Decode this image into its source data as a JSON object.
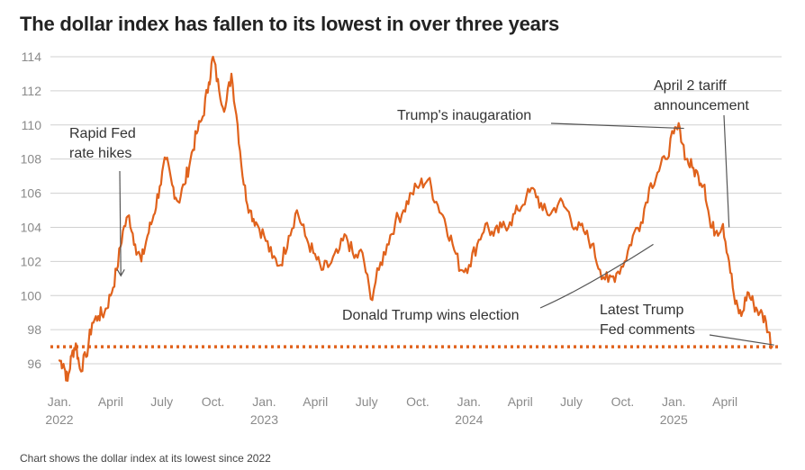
{
  "title": "The dollar index has fallen to its lowest in over three years",
  "footer": "Chart shows the dollar index at its lowest since 2022",
  "colors": {
    "line": "#e0621c",
    "grid": "#d0d0d0",
    "annotation": "#555555",
    "text": "#333333"
  },
  "chart_data": {
    "type": "line",
    "title": "The dollar index has fallen to its lowest in over three years",
    "xlabel": "",
    "ylabel": "",
    "xlim": [
      2022.0,
      2025.5
    ],
    "ylim": [
      95,
      114
    ],
    "yticks": [
      96,
      98,
      100,
      102,
      104,
      106,
      108,
      110,
      112,
      114
    ],
    "xticks": [
      {
        "x": 2022.0,
        "line1": "Jan.",
        "line2": "2022"
      },
      {
        "x": 2022.25,
        "line1": "April",
        "line2": ""
      },
      {
        "x": 2022.5,
        "line1": "July",
        "line2": ""
      },
      {
        "x": 2022.75,
        "line1": "Oct.",
        "line2": ""
      },
      {
        "x": 2023.0,
        "line1": "Jan.",
        "line2": "2023"
      },
      {
        "x": 2023.25,
        "line1": "April",
        "line2": ""
      },
      {
        "x": 2023.5,
        "line1": "July",
        "line2": ""
      },
      {
        "x": 2023.75,
        "line1": "Oct.",
        "line2": ""
      },
      {
        "x": 2024.0,
        "line1": "Jan.",
        "line2": "2024"
      },
      {
        "x": 2024.25,
        "line1": "April",
        "line2": ""
      },
      {
        "x": 2024.5,
        "line1": "July",
        "line2": ""
      },
      {
        "x": 2024.75,
        "line1": "Oct.",
        "line2": ""
      },
      {
        "x": 2025.0,
        "line1": "Jan.",
        "line2": "2025"
      },
      {
        "x": 2025.25,
        "line1": "April",
        "line2": ""
      }
    ],
    "reference_line": {
      "y": 97.0,
      "style": "dotted"
    },
    "series": [
      {
        "name": "Dollar index",
        "points": [
          [
            2022.0,
            96.2
          ],
          [
            2022.02,
            96.0
          ],
          [
            2022.04,
            95.0
          ],
          [
            2022.06,
            96.5
          ],
          [
            2022.08,
            97.2
          ],
          [
            2022.1,
            95.7
          ],
          [
            2022.13,
            96.4
          ],
          [
            2022.16,
            98.4
          ],
          [
            2022.19,
            98.8
          ],
          [
            2022.22,
            99.0
          ],
          [
            2022.25,
            100.0
          ],
          [
            2022.28,
            101.5
          ],
          [
            2022.31,
            103.8
          ],
          [
            2022.34,
            104.7
          ],
          [
            2022.37,
            103.0
          ],
          [
            2022.4,
            102.0
          ],
          [
            2022.43,
            103.5
          ],
          [
            2022.46,
            104.7
          ],
          [
            2022.49,
            106.4
          ],
          [
            2022.52,
            108.0
          ],
          [
            2022.55,
            106.5
          ],
          [
            2022.58,
            105.5
          ],
          [
            2022.61,
            106.5
          ],
          [
            2022.64,
            108.0
          ],
          [
            2022.67,
            109.5
          ],
          [
            2022.7,
            110.5
          ],
          [
            2022.73,
            112.5
          ],
          [
            2022.75,
            114.0
          ],
          [
            2022.78,
            112.0
          ],
          [
            2022.81,
            111.0
          ],
          [
            2022.84,
            113.0
          ],
          [
            2022.87,
            110.0
          ],
          [
            2022.9,
            106.5
          ],
          [
            2022.93,
            105.0
          ],
          [
            2022.96,
            104.3
          ],
          [
            2023.0,
            103.5
          ],
          [
            2023.04,
            102.2
          ],
          [
            2023.08,
            101.8
          ],
          [
            2023.12,
            103.5
          ],
          [
            2023.16,
            105.0
          ],
          [
            2023.2,
            103.5
          ],
          [
            2023.24,
            102.5
          ],
          [
            2023.28,
            101.5
          ],
          [
            2023.32,
            101.8
          ],
          [
            2023.36,
            102.5
          ],
          [
            2023.4,
            103.5
          ],
          [
            2023.44,
            102.2
          ],
          [
            2023.48,
            102.5
          ],
          [
            2023.52,
            99.8
          ],
          [
            2023.56,
            101.5
          ],
          [
            2023.6,
            103.0
          ],
          [
            2023.64,
            104.3
          ],
          [
            2023.68,
            105.0
          ],
          [
            2023.72,
            106.0
          ],
          [
            2023.76,
            106.5
          ],
          [
            2023.8,
            106.8
          ],
          [
            2023.84,
            105.5
          ],
          [
            2023.88,
            104.5
          ],
          [
            2023.92,
            103.0
          ],
          [
            2023.96,
            101.5
          ],
          [
            2024.0,
            101.8
          ],
          [
            2024.04,
            103.0
          ],
          [
            2024.08,
            104.2
          ],
          [
            2024.12,
            103.5
          ],
          [
            2024.16,
            104.0
          ],
          [
            2024.2,
            104.3
          ],
          [
            2024.24,
            105.0
          ],
          [
            2024.28,
            105.8
          ],
          [
            2024.32,
            106.2
          ],
          [
            2024.36,
            105.0
          ],
          [
            2024.4,
            104.8
          ],
          [
            2024.44,
            105.5
          ],
          [
            2024.48,
            105.0
          ],
          [
            2024.52,
            104.0
          ],
          [
            2024.56,
            103.8
          ],
          [
            2024.6,
            103.0
          ],
          [
            2024.64,
            101.5
          ],
          [
            2024.68,
            100.8
          ],
          [
            2024.72,
            101.3
          ],
          [
            2024.76,
            102.0
          ],
          [
            2024.8,
            103.5
          ],
          [
            2024.84,
            104.3
          ],
          [
            2024.88,
            106.3
          ],
          [
            2024.92,
            107.2
          ],
          [
            2024.96,
            108.0
          ],
          [
            2025.0,
            109.5
          ],
          [
            2025.03,
            109.8
          ],
          [
            2025.06,
            108.0
          ],
          [
            2025.09,
            107.5
          ],
          [
            2025.12,
            107.0
          ],
          [
            2025.15,
            106.5
          ],
          [
            2025.18,
            104.0
          ],
          [
            2025.21,
            103.8
          ],
          [
            2025.24,
            104.2
          ],
          [
            2025.27,
            102.0
          ],
          [
            2025.3,
            99.5
          ],
          [
            2025.33,
            98.8
          ],
          [
            2025.36,
            100.2
          ],
          [
            2025.39,
            99.5
          ],
          [
            2025.42,
            99.0
          ],
          [
            2025.45,
            98.5
          ],
          [
            2025.48,
            97.0
          ]
        ]
      }
    ],
    "annotations": [
      {
        "id": "fed-hikes",
        "text": "Rapid Fed\nrate hikes",
        "x": 2022.3,
        "y": 101.0
      },
      {
        "id": "trump-election",
        "text": "Donald Trump wins election",
        "x": 2024.9,
        "y": 103.0
      },
      {
        "id": "inauguration",
        "text": "Trump's inaugaration",
        "x": 2025.05,
        "y": 109.8
      },
      {
        "id": "april-tariff",
        "text": "April 2 tariff\nannouncement",
        "x": 2025.27,
        "y": 104.0
      },
      {
        "id": "fed-comments",
        "text": "Latest Trump\nFed comments",
        "x": 2025.49,
        "y": 97.1
      }
    ]
  }
}
